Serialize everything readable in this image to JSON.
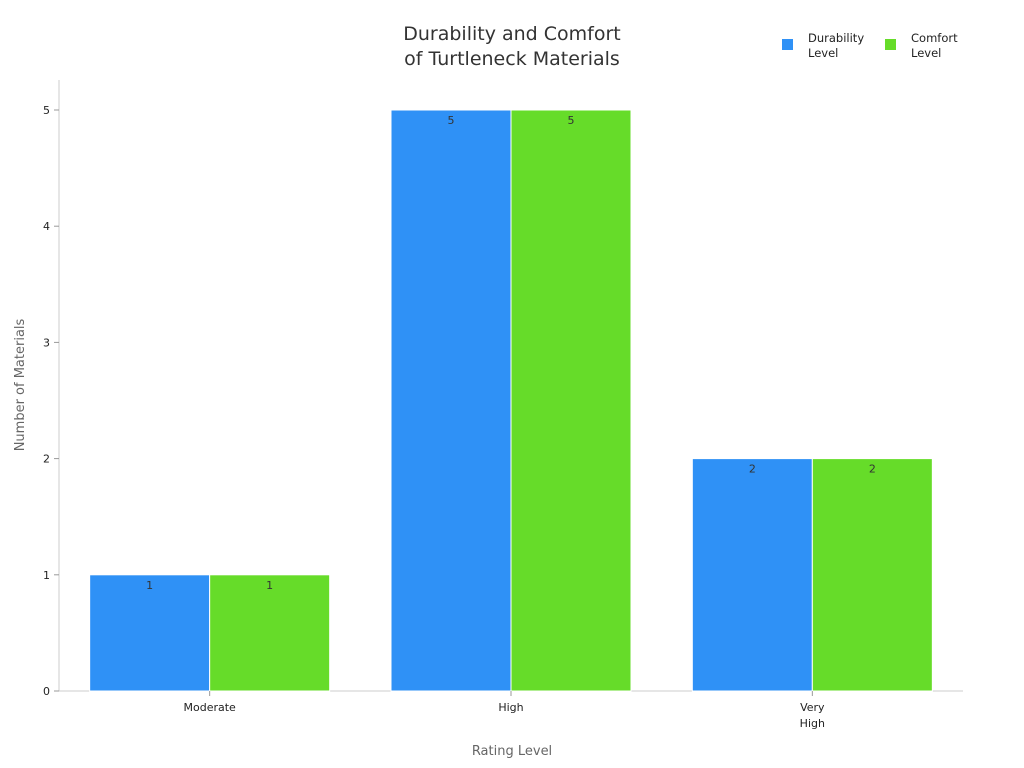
{
  "chart_data": {
    "type": "bar",
    "title": [
      "Durability and Comfort",
      "of Turtleneck Materials"
    ],
    "xlabel": "Rating Level",
    "ylabel": "Number of Materials",
    "categories": [
      [
        "Moderate"
      ],
      [
        "High"
      ],
      [
        "Very",
        "High"
      ]
    ],
    "series": [
      {
        "name": [
          "Durability",
          "Level"
        ],
        "values": [
          1,
          5,
          2
        ],
        "color": "#2F91F6"
      },
      {
        "name": [
          "Comfort",
          "Level"
        ],
        "values": [
          1,
          5,
          2
        ],
        "color": "#66DC29"
      }
    ],
    "ylim": [
      0,
      5
    ],
    "yticks": [
      0,
      1,
      2,
      3,
      4,
      5
    ],
    "grid": false,
    "legend": "top-right"
  }
}
